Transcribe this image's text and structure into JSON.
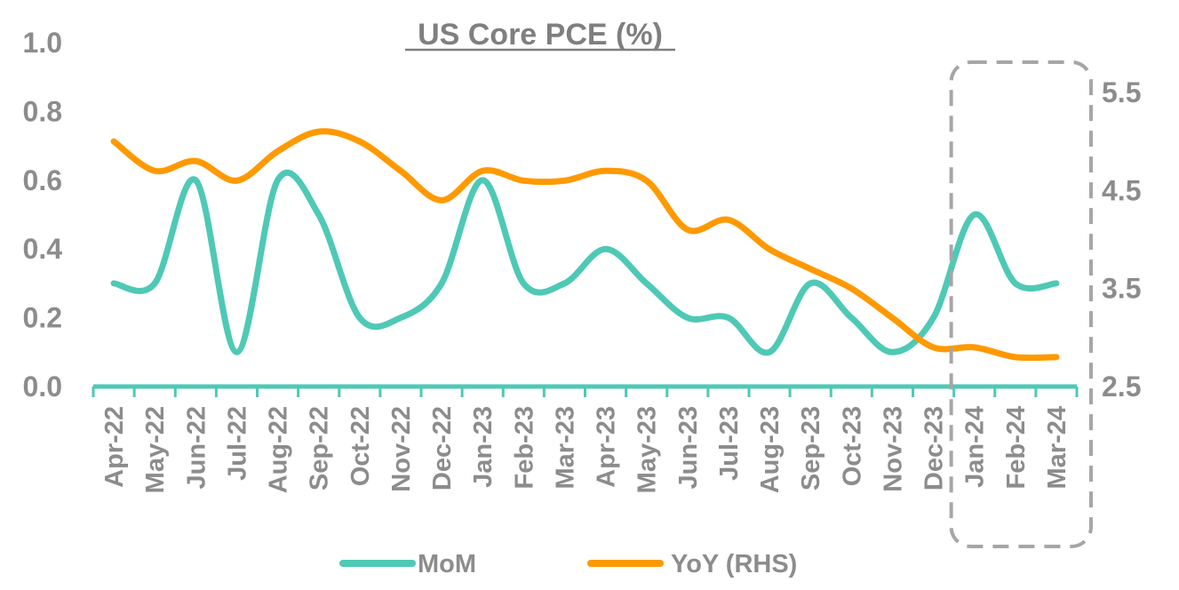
{
  "chart_data": {
    "type": "line",
    "title": "US Core PCE (%)",
    "categories": [
      "Apr-22",
      "May-22",
      "Jun-22",
      "Jul-22",
      "Aug-22",
      "Sep-22",
      "Oct-22",
      "Nov-22",
      "Dec-22",
      "Jan-23",
      "Feb-23",
      "Mar-23",
      "Apr-23",
      "May-23",
      "Jun-23",
      "Jul-23",
      "Aug-23",
      "Sep-23",
      "Oct-23",
      "Nov-23",
      "Dec-23",
      "Jan-24",
      "Feb-24",
      "Mar-24"
    ],
    "series": [
      {
        "name": "MoM",
        "axis": "left",
        "color": "#4ec9b5",
        "values": [
          0.3,
          0.3,
          0.6,
          0.1,
          0.6,
          0.5,
          0.2,
          0.2,
          0.3,
          0.6,
          0.3,
          0.3,
          0.4,
          0.3,
          0.2,
          0.2,
          0.1,
          0.3,
          0.2,
          0.1,
          0.2,
          0.5,
          0.3,
          0.3
        ]
      },
      {
        "name": "YoY (RHS)",
        "axis": "right",
        "color": "#ff9900",
        "values": [
          5.0,
          4.7,
          4.8,
          4.6,
          4.9,
          5.1,
          5.0,
          4.7,
          4.4,
          4.7,
          4.6,
          4.6,
          4.7,
          4.6,
          4.1,
          4.2,
          3.9,
          3.7,
          3.5,
          3.2,
          2.9,
          2.9,
          2.8,
          2.8
        ]
      }
    ],
    "y_left": {
      "ylim": [
        0,
        1.0
      ],
      "ticks": [
        "0.0",
        "0.2",
        "0.4",
        "0.6",
        "0.8",
        "1.0"
      ]
    },
    "y_right": {
      "ylim": [
        2.5,
        5.5
      ],
      "ticks": [
        "2.5",
        "3.5",
        "4.5",
        "5.5"
      ]
    },
    "grid": false,
    "legend": "bottom",
    "highlight": {
      "from": "Jan-24",
      "to": "Mar-24",
      "style": "dashed box"
    },
    "colors": {
      "axis": "#4ec9b5",
      "text": "#8c8c8c",
      "highlight_box": "#a6a6a6"
    }
  }
}
